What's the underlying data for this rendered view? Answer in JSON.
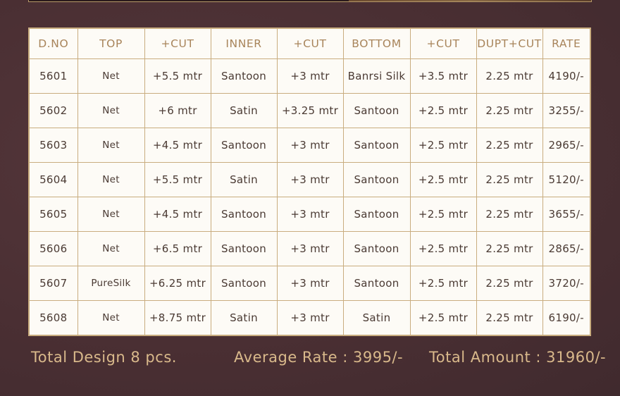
{
  "table": {
    "headers": [
      "D.NO",
      "TOP",
      "+CUT",
      "INNER",
      "+CUT",
      "BOTTOM",
      "+CUT",
      "DUPT+CUT",
      "RATE"
    ],
    "rows": [
      [
        "5601",
        "Net",
        "+5.5 mtr",
        "Santoon",
        "+3 mtr",
        "Banrsi Silk",
        "+3.5 mtr",
        "2.25 mtr",
        "4190/-"
      ],
      [
        "5602",
        "Net",
        "+6 mtr",
        "Satin",
        "+3.25 mtr",
        "Santoon",
        "+2.5 mtr",
        "2.25 mtr",
        "3255/-"
      ],
      [
        "5603",
        "Net",
        "+4.5 mtr",
        "Santoon",
        "+3 mtr",
        "Santoon",
        "+2.5 mtr",
        "2.25 mtr",
        "2965/-"
      ],
      [
        "5604",
        "Net",
        "+5.5 mtr",
        "Satin",
        "+3 mtr",
        "Santoon",
        "+2.5 mtr",
        "2.25 mtr",
        "5120/-"
      ],
      [
        "5605",
        "Net",
        "+4.5 mtr",
        "Santoon",
        "+3 mtr",
        "Santoon",
        "+2.5 mtr",
        "2.25 mtr",
        "3655/-"
      ],
      [
        "5606",
        "Net",
        "+6.5 mtr",
        "Santoon",
        "+3 mtr",
        "Santoon",
        "+2.5 mtr",
        "2.25 mtr",
        "2865/-"
      ],
      [
        "5607",
        "PureSilk",
        "+6.25 mtr",
        "Santoon",
        "+3 mtr",
        "Santoon",
        "+2.5 mtr",
        "2.25 mtr",
        "3720/-"
      ],
      [
        "5608",
        "Net",
        "+8.75 mtr",
        "Satin",
        "+3 mtr",
        "Satin",
        "+2.5 mtr",
        "2.25 mtr",
        "6190/-"
      ]
    ]
  },
  "footer": {
    "total_design": "Total Design 8 pcs.",
    "average_rate": "Average Rate : 3995/-",
    "total_amount": "Total Amount : 31960/-"
  },
  "colors": {
    "background": "#4a2f33",
    "table_border": "#c9ad7f",
    "header_text": "#a8845a",
    "footer_text": "#d9b98b"
  }
}
